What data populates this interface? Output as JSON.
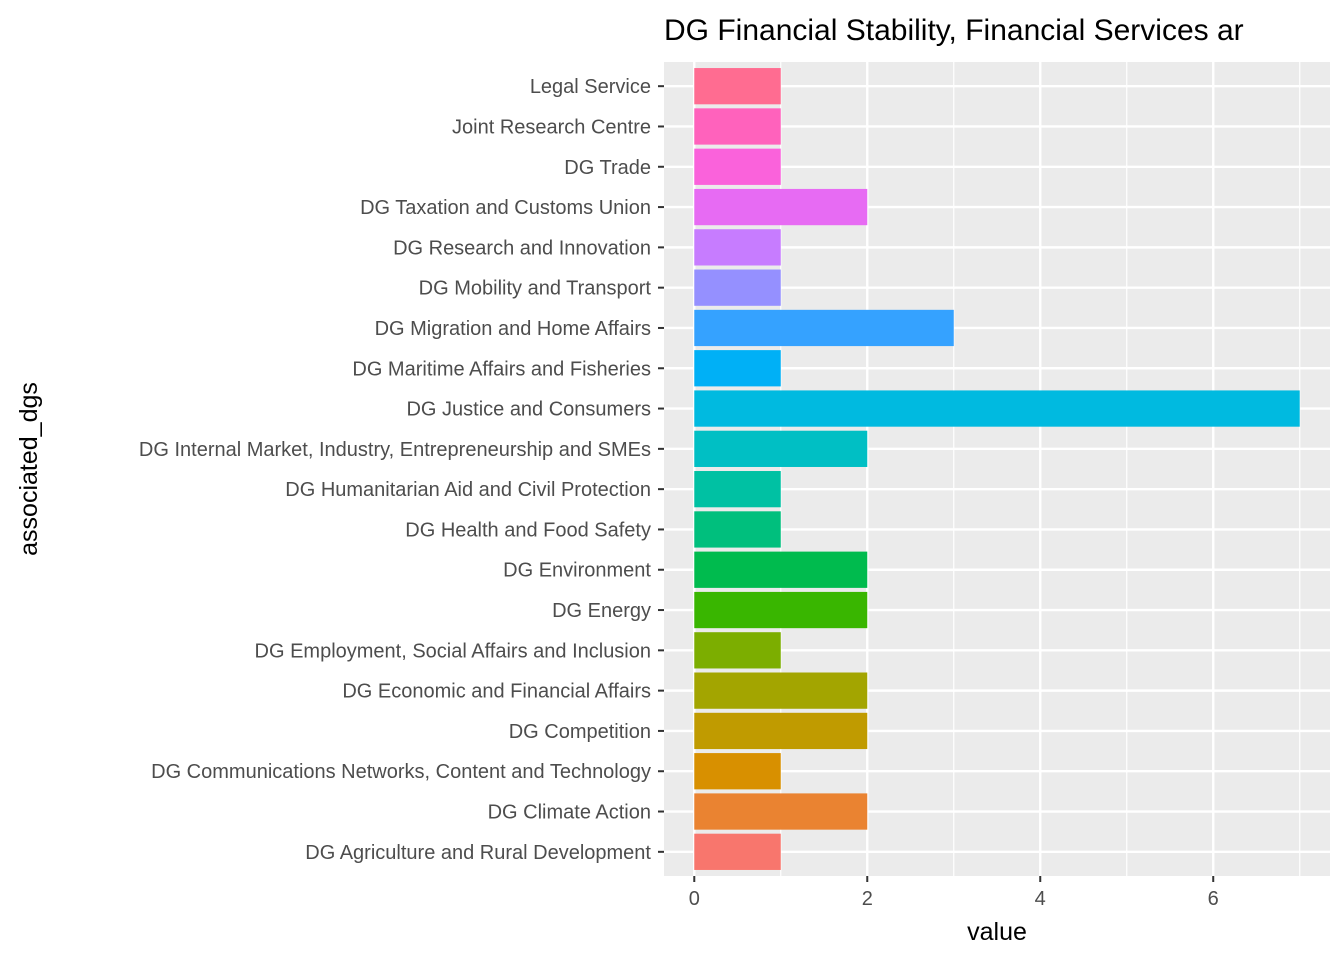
{
  "chart_data": {
    "type": "bar",
    "orientation": "horizontal",
    "title": "DG Financial Stability, Financial Services ar",
    "xlabel": "value",
    "ylabel": "associated_dgs",
    "xlim": [
      -0.35,
      7.35
    ],
    "xticks": [
      0,
      2,
      4,
      6
    ],
    "grid": true,
    "legend": "none",
    "categories": [
      "DG Agriculture and Rural Development",
      "DG Climate Action",
      "DG Communications Networks, Content and Technology",
      "DG Competition",
      "DG Economic and Financial Affairs",
      "DG Employment, Social Affairs and Inclusion",
      "DG Energy",
      "DG Environment",
      "DG Health and Food Safety",
      "DG Humanitarian Aid and Civil Protection",
      "DG Internal Market, Industry, Entrepreneurship and SMEs",
      "DG Justice and Consumers",
      "DG Maritime Affairs and Fisheries",
      "DG Migration and Home Affairs",
      "DG Mobility and Transport",
      "DG Research and Innovation",
      "DG Taxation and Customs Union",
      "DG Trade",
      "Joint Research Centre",
      "Legal Service"
    ],
    "values": [
      1,
      2,
      1,
      2,
      2,
      1,
      2,
      2,
      1,
      1,
      2,
      7,
      1,
      3,
      1,
      1,
      2,
      1,
      1,
      1
    ],
    "colors": [
      "#F8766D",
      "#EA8331",
      "#D89000",
      "#C09B00",
      "#A3A500",
      "#7CAE00",
      "#39B600",
      "#00BB4E",
      "#00BF7D",
      "#00C1A3",
      "#00BFC4",
      "#00BAE0",
      "#00B0F6",
      "#35A2FF",
      "#9590FF",
      "#C77CFF",
      "#E76BF3",
      "#FA62DB",
      "#FF62BC",
      "#FF6C91"
    ]
  }
}
